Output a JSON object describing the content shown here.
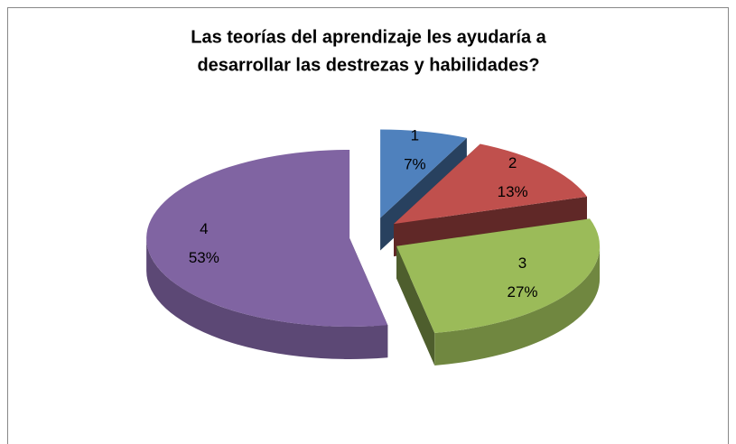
{
  "chart_data": {
    "type": "pie",
    "title": [
      "Las teorías del aprendizaje les ayudaría  a",
      "desarrollar las destrezas y habilidades?"
    ],
    "categories": [
      "1",
      "2",
      "3",
      "4"
    ],
    "values": [
      7,
      13,
      27,
      53
    ],
    "value_labels": [
      "7%",
      "13%",
      "27%",
      "53%"
    ],
    "colors": [
      "#4f81bd",
      "#c0504d",
      "#9bbb59",
      "#8064a2"
    ],
    "exploded": true,
    "three_d": true
  }
}
